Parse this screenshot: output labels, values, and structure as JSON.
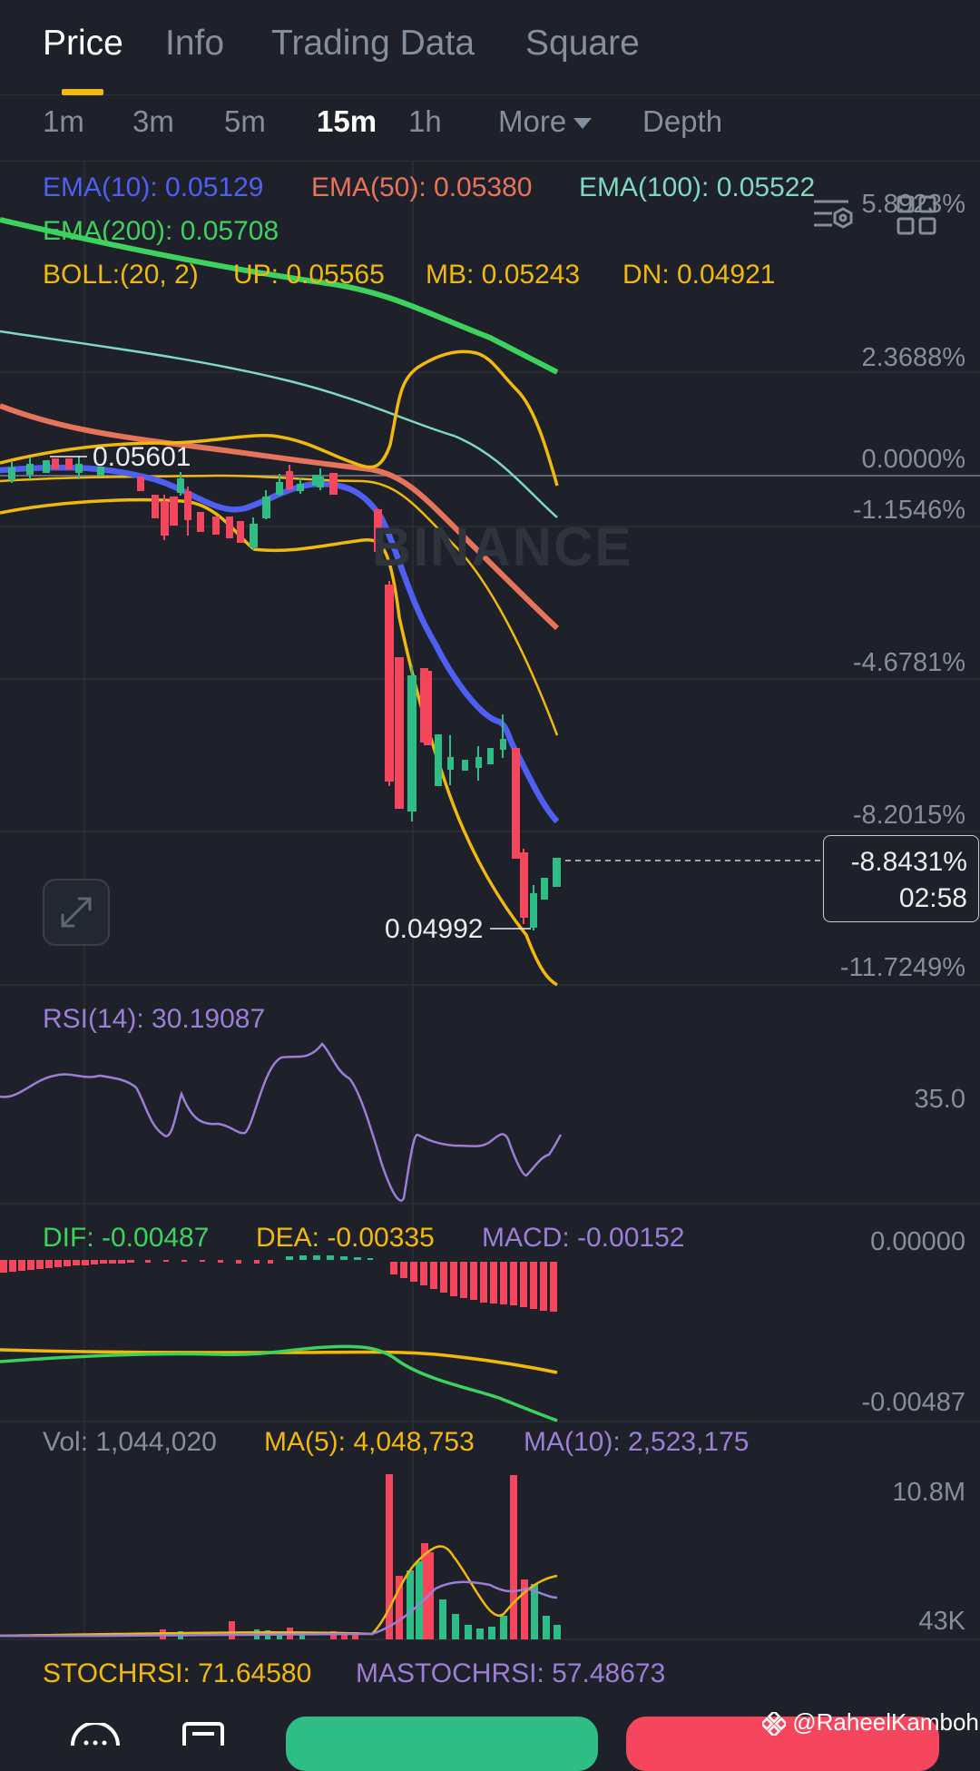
{
  "tabs": [
    "Price",
    "Info",
    "Trading Data",
    "Square"
  ],
  "intervals": [
    "1m",
    "3m",
    "5m",
    "15m",
    "1h",
    "More",
    "Depth"
  ],
  "legend": {
    "ema10": "EMA(10): 0.05129",
    "ema50": "EMA(50): 0.05380",
    "ema100": "EMA(100): 0.05522",
    "ema200": "EMA(200): 0.05708",
    "boll": "BOLL:(20, 2)",
    "up": "UP: 0.05565",
    "mb": "MB: 0.05243",
    "dn": "DN: 0.04921"
  },
  "price_axis": [
    "5.8923%",
    "2.3688%",
    "0.0000%",
    "-1.1546%",
    "-4.6781%",
    "-8.2015%",
    "-11.7249%"
  ],
  "high_label": "0.05601",
  "low_label": "0.04992",
  "current": {
    "pct": "-8.8431%",
    "countdown": "02:58"
  },
  "watermark_brand": "BINANCE",
  "rsi": {
    "label": "RSI(14): 30.19087",
    "axis": "35.0"
  },
  "macd": {
    "dif": "DIF: -0.00487",
    "dea": "DEA: -0.00335",
    "macd": "MACD: -0.00152",
    "axis_top": "0.00000",
    "axis_bottom": "-0.00487"
  },
  "volume": {
    "vol": "Vol: 1,044,020",
    "ma5": "MA(5): 4,048,753",
    "ma10": "MA(10): 2,523,175",
    "axis_top": "10.8M",
    "axis_bottom": "43K"
  },
  "stoch": {
    "stochrsi": "STOCHRSI: 71.64580",
    "mastochrsi": "MASTOCHRSI: 57.48673"
  },
  "credit": "@RaheelKamboh",
  "colors": {
    "ema10": "#4e5ff1",
    "ema50": "#e8735b",
    "ema100": "#7fd8c4",
    "ema200": "#3dd15e",
    "boll": "#f0b90b",
    "up": "#2ebd85",
    "down": "#f6465d",
    "purple": "#9b7fd6"
  }
}
